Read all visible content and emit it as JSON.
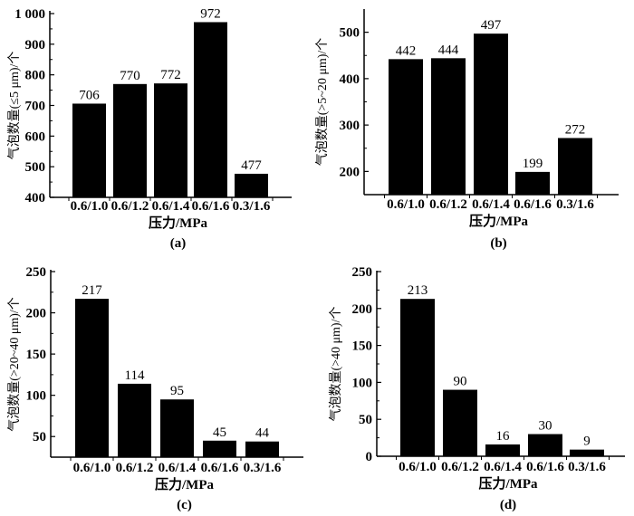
{
  "chart_data": [
    {
      "type": "bar",
      "panel_label": "(a)",
      "categories": [
        "0.6/1.0",
        "0.6/1.2",
        "0.6/1.4",
        "0.6/1.6",
        "0.3/1.6"
      ],
      "values": [
        706,
        770,
        772,
        972,
        477
      ],
      "xlabel": "压力/MPa",
      "ylabel": "气泡数量(≤5 μm)/个",
      "ylim": [
        400,
        1000
      ],
      "yticks": [
        400,
        500,
        600,
        700,
        800,
        900,
        1000
      ],
      "ytick_labels": [
        "400",
        "500",
        "600",
        "700",
        "800",
        "900",
        "1 000"
      ],
      "color": "#000000",
      "grid": false
    },
    {
      "type": "bar",
      "panel_label": "(b)",
      "categories": [
        "0.6/1.0",
        "0.6/1.2",
        "0.6/1.4",
        "0.6/1.6",
        "0.3/1.6"
      ],
      "values": [
        442,
        444,
        497,
        199,
        272
      ],
      "xlabel": "压力/MPa",
      "ylabel": "气泡数量(>5~20 μm)/个",
      "ylim": [
        150,
        550
      ],
      "yticks": [
        200,
        300,
        400,
        500
      ],
      "ytick_labels": [
        "200",
        "300",
        "400",
        "500"
      ],
      "color": "#000000",
      "grid": false
    },
    {
      "type": "bar",
      "panel_label": "(c)",
      "categories": [
        "0.6/1.0",
        "0.6/1.2",
        "0.6/1.4",
        "0.6/1.6",
        "0.3/1.6"
      ],
      "values": [
        217,
        114,
        95,
        45,
        44
      ],
      "xlabel": "压力/MPa",
      "ylabel": "气泡数量(>20~40 μm)/个",
      "ylim": [
        25,
        250
      ],
      "yticks": [
        50,
        100,
        150,
        200,
        250
      ],
      "ytick_labels": [
        "50",
        "100",
        "150",
        "200",
        "250"
      ],
      "color": "#000000",
      "grid": false
    },
    {
      "type": "bar",
      "panel_label": "(d)",
      "categories": [
        "0.6/1.0",
        "0.6/1.2",
        "0.6/1.4",
        "0.6/1.6",
        "0.3/1.6"
      ],
      "values": [
        213,
        90,
        16,
        30,
        9
      ],
      "xlabel": "压力/MPa",
      "ylabel": "气泡数量(>40 μm)/个",
      "ylim": [
        0,
        250
      ],
      "yticks": [
        0,
        50,
        100,
        150,
        200,
        250
      ],
      "ytick_labels": [
        "0",
        "50",
        "100",
        "150",
        "200",
        "250"
      ],
      "color": "#000000",
      "grid": false
    }
  ]
}
